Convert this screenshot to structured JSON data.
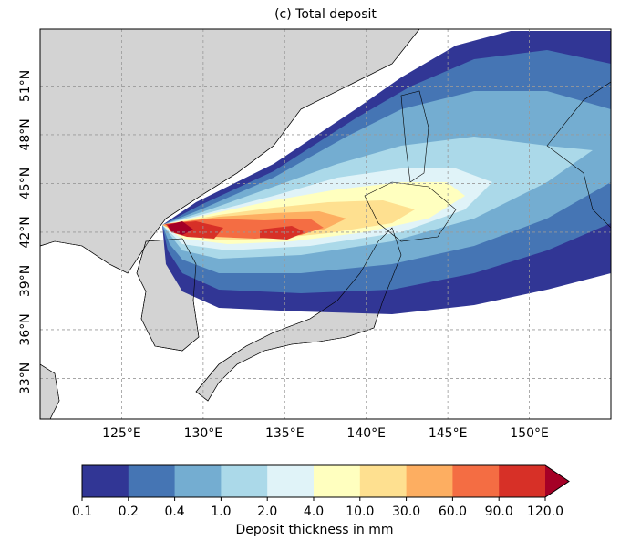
{
  "title": "(c) Total deposit",
  "map": {
    "xlim": [
      120,
      155
    ],
    "ylim": [
      30.5,
      54.5
    ],
    "grid": true,
    "land_color": "#d3d3d3",
    "xticks": [
      {
        "value": 125,
        "label": "125°E"
      },
      {
        "value": 130,
        "label": "130°E"
      },
      {
        "value": 135,
        "label": "135°E"
      },
      {
        "value": 140,
        "label": "140°E"
      },
      {
        "value": 145,
        "label": "145°E"
      },
      {
        "value": 150,
        "label": "150°E"
      }
    ],
    "yticks": [
      {
        "value": 33,
        "label": "33°N"
      },
      {
        "value": 36,
        "label": "36°N"
      },
      {
        "value": 39,
        "label": "39°N"
      },
      {
        "value": 42,
        "label": "42°N"
      },
      {
        "value": 45,
        "label": "45°N"
      },
      {
        "value": 48,
        "label": "48°N"
      },
      {
        "value": 51,
        "label": "51°N"
      }
    ]
  },
  "colorbar": {
    "label": "Deposit thickness in mm",
    "levels": [
      0.1,
      0.2,
      0.4,
      {
        "value": 1,
        "label": "1.0"
      },
      {
        "value": 2,
        "label": "2.0"
      },
      {
        "value": 4,
        "label": "4.0"
      },
      {
        "value": 10,
        "label": "10.0"
      },
      {
        "value": 30,
        "label": "30.0"
      },
      {
        "value": 60,
        "label": "60.0"
      },
      {
        "value": 90,
        "label": "90.0"
      },
      {
        "value": 120,
        "label": "120.0"
      }
    ],
    "colors": [
      "#313695",
      "#4575b4",
      "#74add1",
      "#abd9e9",
      "#e0f3f8",
      "#ffffbf",
      "#fee090",
      "#fdae61",
      "#f46d43",
      "#d73027"
    ],
    "extend_color": "#a50026"
  }
}
